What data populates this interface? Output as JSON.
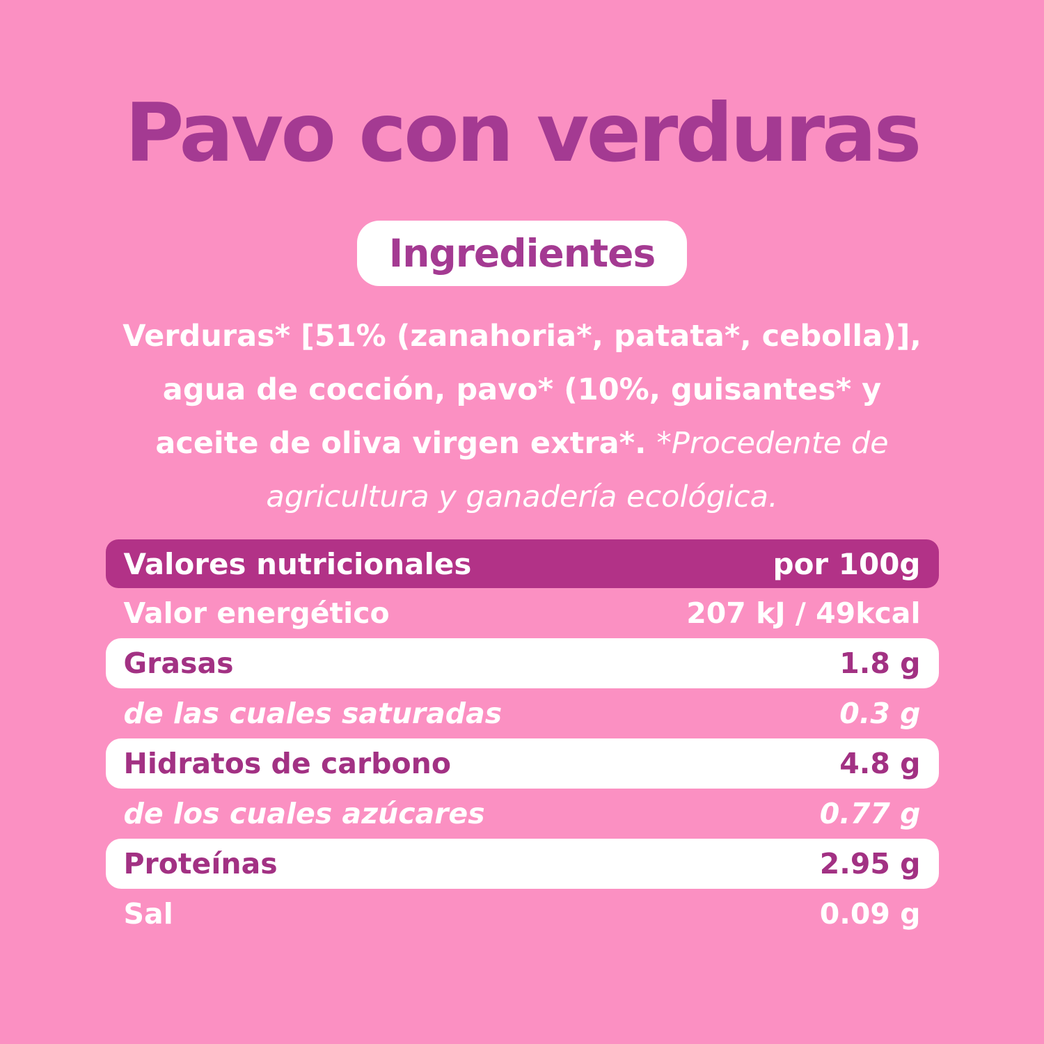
{
  "colors": {
    "background_pink": "#FB90C2",
    "title_purple": "#A43A92",
    "table_header_purple": "#B23287",
    "row_label_purple": "#A23183",
    "text_white": "#FFFFFF"
  },
  "title": "Pavo con verduras",
  "ingredients": {
    "badge_label": "Ingredientes",
    "declaration": "Verduras* [51% (zanahoria*, patata*, cebolla)], agua de cocción, pavo* (10%, guisantes* y aceite de oliva virgen extra*. ",
    "organic_note": "*Procedente de agricultura y ganadería ecológica."
  },
  "nutrition_table": {
    "header": {
      "label": "Valores nutricionales",
      "value": "por 100g"
    },
    "rows": [
      {
        "label": "Valor energético",
        "value": "207 kJ / 49kcal",
        "style": "pink"
      },
      {
        "label": "Grasas",
        "value": "1.8 g",
        "style": "white"
      },
      {
        "label": "de las cuales saturadas",
        "value": "0.3 g",
        "style": "pink-italic"
      },
      {
        "label": "Hidratos de carbono",
        "value": "4.8 g",
        "style": "white"
      },
      {
        "label": "de los cuales azúcares",
        "value": "0.77 g",
        "style": "pink-italic"
      },
      {
        "label": "Proteínas",
        "value": "2.95 g",
        "style": "white"
      },
      {
        "label": "Sal",
        "value": "0.09 g",
        "style": "pink"
      }
    ]
  }
}
